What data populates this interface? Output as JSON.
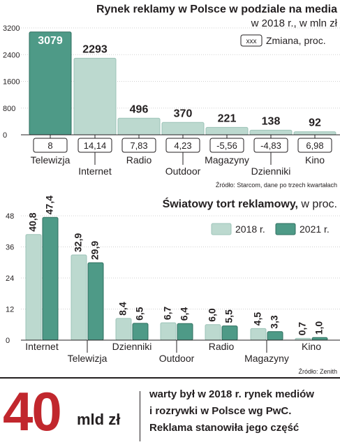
{
  "chart_data": [
    {
      "type": "bar",
      "title": "Rynek reklamy w Polsce w podziale na media",
      "subtitle": "w 2018 r., w mln zł",
      "legend_label": "Zmiana, proc.",
      "legend_marker": "xxx",
      "categories": [
        "Telewizja",
        "Internet",
        "Radio",
        "Outdoor",
        "Magazyny",
        "Dzienniki",
        "Kino"
      ],
      "value_labels": [
        "3079",
        "2293",
        "496",
        "370",
        "221",
        "138",
        "92"
      ],
      "values": [
        3079,
        2293,
        496,
        370,
        221,
        138,
        92
      ],
      "changes": [
        "8",
        "14,14",
        "7,83",
        "4,23",
        "-5,56",
        "-4,83",
        "6,98"
      ],
      "yticks": [
        "3200",
        "2400",
        "1600",
        "800",
        "0"
      ],
      "ylim": [
        0,
        3200
      ],
      "grid": true,
      "source": "Źródło: Starcom, dane po trzech kwartałach",
      "colors": {
        "highlight": "#4e9a87",
        "normal": "#bcd9cf",
        "highlight_border": "#2f6f5f",
        "normal_border": "#9dc4b8"
      }
    },
    {
      "type": "bar",
      "title_bold": "Światowy tort reklamowy,",
      "title_rest": " w proc.",
      "categories": [
        "Internet",
        "Telewizja",
        "Dzienniki",
        "Outdoor",
        "Radio",
        "Magazyny",
        "Kino"
      ],
      "series": [
        {
          "name": "2018 r.",
          "values": [
            40.8,
            32.9,
            8.4,
            6.7,
            6.0,
            4.5,
            0.7
          ],
          "labels": [
            "40,8",
            "32,9",
            "8,4",
            "6,7",
            "6,0",
            "4,5",
            "0,7"
          ]
        },
        {
          "name": "2021 r.",
          "values": [
            47.4,
            29.9,
            6.5,
            6.4,
            5.5,
            3.3,
            1.0
          ],
          "labels": [
            "47,4",
            "29,9",
            "6,5",
            "6,4",
            "5,5",
            "3,3",
            "1,0"
          ]
        }
      ],
      "yticks": [
        "48",
        "36",
        "24",
        "12",
        "0"
      ],
      "ylim": [
        0,
        48
      ],
      "grid": true,
      "legend_position": "top-right",
      "source": "Źródło: Zenith",
      "colors": {
        "2018": "#bcd9cf",
        "2021": "#4e9a87"
      }
    }
  ],
  "footer": {
    "big_number": "40",
    "unit": "mld zł",
    "line1": "warty był w 2018 r. rynek mediów",
    "line2": "i rozrywki w Polsce wg PwC.",
    "line3": "Reklama stanowiła jego część",
    "accent": "#c1272d"
  }
}
